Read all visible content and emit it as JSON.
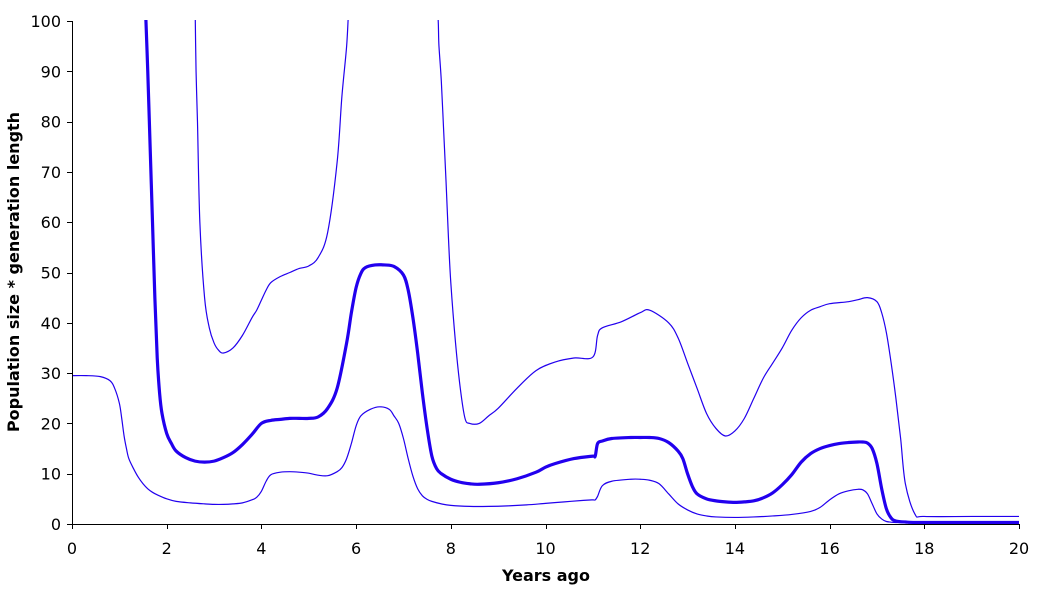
{
  "chart_data": {
    "type": "line",
    "xlabel": "Years ago",
    "ylabel": "Population size * generation length",
    "xlim": [
      0,
      20
    ],
    "ylim": [
      0,
      100
    ],
    "xticks": [
      0,
      2,
      4,
      6,
      8,
      10,
      12,
      14,
      16,
      18,
      20
    ],
    "yticks": [
      0,
      10,
      20,
      30,
      40,
      50,
      60,
      70,
      80,
      90,
      100
    ],
    "grid": false,
    "legend": "none",
    "line_color": "#2200ee",
    "series": [
      {
        "role": "upper",
        "x": [
          2.6,
          2.62,
          2.65,
          2.7,
          2.8,
          2.9,
          3.0,
          3.1,
          3.2,
          3.4,
          3.6,
          3.8,
          3.9,
          4.0,
          4.1,
          4.2,
          4.4,
          4.6,
          4.8,
          5.0,
          5.2,
          5.4,
          5.6,
          5.7,
          5.8,
          5.85,
          5.9,
          7.7,
          7.75,
          7.8,
          7.85,
          7.9,
          7.95,
          8.0,
          8.1,
          8.2,
          8.3,
          8.4,
          8.6,
          8.8,
          9.0,
          9.4,
          9.8,
          10.2,
          10.6,
          11.0,
          11.1,
          11.2,
          11.6,
          12.0,
          12.2,
          12.6,
          12.8,
          13.0,
          13.2,
          13.4,
          13.6,
          13.8,
          14.0,
          14.2,
          14.4,
          14.6,
          14.8,
          15.0,
          15.2,
          15.4,
          15.6,
          15.8,
          16.0,
          16.4,
          16.6,
          16.8,
          17.0,
          17.1,
          17.2,
          17.3,
          17.4,
          17.5,
          17.6,
          17.8,
          18.0,
          19.0,
          20.0
        ],
        "y": [
          100,
          90,
          80,
          60,
          45,
          39,
          36,
          34.5,
          34,
          35,
          37.5,
          41,
          42.5,
          44.5,
          46.5,
          48,
          49.2,
          50,
          50.8,
          51.3,
          53,
          58,
          72,
          85,
          95,
          100,
          100,
          100,
          95,
          88,
          78,
          68,
          57,
          48,
          36,
          27,
          21,
          20,
          20,
          21.5,
          23,
          27,
          30.5,
          32.2,
          33,
          33.2,
          37.5,
          39,
          40.2,
          42,
          42.5,
          40,
          37,
          32,
          27,
          22,
          19,
          17.5,
          18.5,
          21,
          25,
          29,
          32,
          35,
          38.5,
          41,
          42.5,
          43.2,
          43.8,
          44.2,
          44.6,
          45,
          44.2,
          42,
          38,
          32,
          25,
          17,
          8,
          2,
          1.5,
          1.5,
          1.5
        ]
      },
      {
        "role": "median",
        "x": [
          1.55,
          1.6,
          1.65,
          1.7,
          1.75,
          1.8,
          1.85,
          1.9,
          2.0,
          2.1,
          2.2,
          2.4,
          2.6,
          2.8,
          3.0,
          3.2,
          3.4,
          3.6,
          3.8,
          4.0,
          4.2,
          4.4,
          4.6,
          4.8,
          5.0,
          5.2,
          5.4,
          5.6,
          5.8,
          5.9,
          6.0,
          6.1,
          6.2,
          6.4,
          6.6,
          6.8,
          7.0,
          7.1,
          7.2,
          7.3,
          7.4,
          7.5,
          7.6,
          7.7,
          7.8,
          8.0,
          8.2,
          8.4,
          8.6,
          9.0,
          9.4,
          9.8,
          10.0,
          10.2,
          10.6,
          11.0,
          11.05,
          11.1,
          11.2,
          11.4,
          11.8,
          12.0,
          12.2,
          12.4,
          12.6,
          12.8,
          12.9,
          13.0,
          13.1,
          13.2,
          13.4,
          13.6,
          13.8,
          14.0,
          14.2,
          14.4,
          14.6,
          14.8,
          15.0,
          15.2,
          15.4,
          15.6,
          15.8,
          16.0,
          16.2,
          16.4,
          16.6,
          16.7,
          16.8,
          16.9,
          17.0,
          17.1,
          17.2,
          17.3,
          17.4,
          17.6,
          18.0,
          20.0
        ],
        "y": [
          100,
          90,
          75,
          60,
          45,
          33,
          26,
          22,
          18,
          16,
          14.5,
          13.2,
          12.5,
          12.3,
          12.5,
          13.2,
          14.2,
          15.8,
          17.8,
          20,
          20.6,
          20.8,
          21,
          21,
          21,
          21.3,
          23,
          27,
          36,
          42,
          47,
          49.8,
          51,
          51.5,
          51.5,
          51.2,
          49.5,
          46.5,
          41,
          34,
          26,
          19,
          13.5,
          11,
          10,
          8.9,
          8.3,
          8.0,
          7.9,
          8.2,
          9,
          10.3,
          11.3,
          12,
          13,
          13.5,
          13.5,
          16,
          16.5,
          17,
          17.2,
          17.2,
          17.2,
          17,
          16.2,
          14.5,
          13,
          10,
          7.5,
          6,
          5,
          4.6,
          4.4,
          4.3,
          4.4,
          4.6,
          5.2,
          6.2,
          7.8,
          9.8,
          12.3,
          14,
          15,
          15.6,
          16,
          16.2,
          16.3,
          16.3,
          16.1,
          15,
          12,
          7,
          3,
          1.2,
          0.6,
          0.4,
          0.3,
          0.3
        ]
      },
      {
        "role": "lower",
        "x": [
          0.0,
          0.3,
          0.6,
          0.8,
          0.9,
          1.0,
          1.05,
          1.1,
          1.15,
          1.2,
          1.3,
          1.4,
          1.5,
          1.6,
          1.7,
          1.8,
          2.0,
          2.2,
          2.5,
          2.8,
          3.0,
          3.2,
          3.4,
          3.6,
          3.8,
          3.9,
          4.0,
          4.1,
          4.2,
          4.4,
          4.6,
          4.8,
          5.0,
          5.2,
          5.4,
          5.6,
          5.7,
          5.8,
          5.9,
          6.0,
          6.1,
          6.3,
          6.5,
          6.7,
          6.8,
          6.9,
          7.0,
          7.1,
          7.2,
          7.3,
          7.4,
          7.5,
          7.6,
          7.8,
          8.0,
          8.4,
          8.8,
          9.2,
          9.6,
          10.0,
          10.4,
          10.8,
          11.0,
          11.05,
          11.1,
          11.2,
          11.4,
          11.8,
          12.0,
          12.2,
          12.4,
          12.6,
          12.8,
          13.0,
          13.2,
          13.4,
          13.6,
          14.0,
          14.4,
          14.8,
          15.2,
          15.6,
          15.8,
          16.0,
          16.2,
          16.4,
          16.6,
          16.7,
          16.8,
          16.9,
          17.0,
          17.1,
          17.2,
          17.4,
          18.0,
          20.0
        ],
        "y": [
          29.5,
          29.5,
          29.3,
          28.5,
          27,
          24,
          21,
          17.5,
          15,
          13,
          11,
          9.3,
          8,
          7,
          6.3,
          5.8,
          5,
          4.5,
          4.2,
          4.0,
          3.9,
          3.9,
          4.0,
          4.2,
          4.8,
          5.3,
          6.5,
          8.5,
          9.8,
          10.3,
          10.4,
          10.3,
          10.1,
          9.7,
          9.6,
          10.4,
          11.2,
          13,
          16,
          19.5,
          21.5,
          22.8,
          23.3,
          22.8,
          21.5,
          20,
          17,
          13,
          9.5,
          7,
          5.6,
          4.9,
          4.5,
          4.0,
          3.7,
          3.5,
          3.5,
          3.6,
          3.8,
          4.1,
          4.4,
          4.7,
          4.8,
          4.8,
          5.5,
          7.6,
          8.5,
          8.9,
          8.9,
          8.7,
          8,
          6,
          4,
          2.8,
          2.0,
          1.6,
          1.4,
          1.3,
          1.4,
          1.6,
          1.9,
          2.5,
          3.3,
          4.8,
          6,
          6.6,
          6.9,
          6.8,
          6,
          4,
          2,
          1,
          0.5,
          0.3,
          0.2,
          0.2
        ]
      }
    ]
  }
}
